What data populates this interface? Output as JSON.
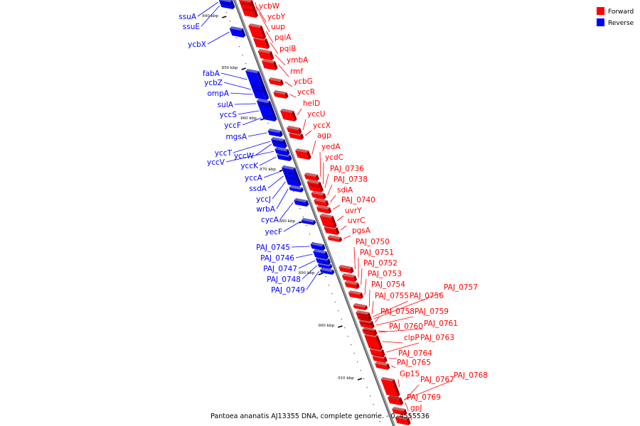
{
  "legend": {
    "forward": {
      "label": "Forward",
      "color": "#ff0000"
    },
    "reverse": {
      "label": "Reverse",
      "color": "#0000ff"
    }
  },
  "caption": "Pantoea ananatis AJ13355 DNA, complete genome. - 0..4555536",
  "ticks": [
    "840 kbp",
    "850 kbp",
    "860 kbp",
    "870 kbp",
    "880 kbp",
    "890 kbp",
    "900 kbp",
    "910 kbp"
  ],
  "forward_genes": [
    "ycbW",
    "ycbY",
    "uup",
    "pqiA",
    "pqiB",
    "ymbA",
    "rmf",
    "ycbG",
    "yccR",
    "helD",
    "yccU",
    "yccX",
    "agp",
    "yedA",
    "ycdC",
    "PAJ_0736",
    "PAJ_0738",
    "sdiA",
    "PAJ_0740",
    "uvrY",
    "uvrC",
    "pgsA",
    "PAJ_0750",
    "PAJ_0751",
    "PAJ_0752",
    "PAJ_0753",
    "PAJ_0754",
    "PAJ_0755",
    "PAJ_0756",
    "PAJ_0757",
    "PAJ_0758",
    "PAJ_0759",
    "PAJ_0760",
    "PAJ_0761",
    "clpP",
    "PAJ_0763",
    "PAJ_0764",
    "PAJ_0765",
    "Gp15",
    "PAJ_0767",
    "PAJ_0768",
    "PAJ_0769",
    "gpJ"
  ],
  "reverse_genes": [
    "ssuA",
    "ssuE",
    "ycbX",
    "fabA",
    "ycbZ",
    "ompA",
    "sulA",
    "yccS",
    "yccF",
    "mgsA",
    "yccT",
    "yccW",
    "yccV",
    "yccK",
    "yccA",
    "ssdA",
    "yccJ",
    "wrbA",
    "cycA",
    "yecF",
    "PAJ_0745",
    "PAJ_0746",
    "PAJ_0747",
    "PAJ_0748",
    "PAJ_0749"
  ]
}
